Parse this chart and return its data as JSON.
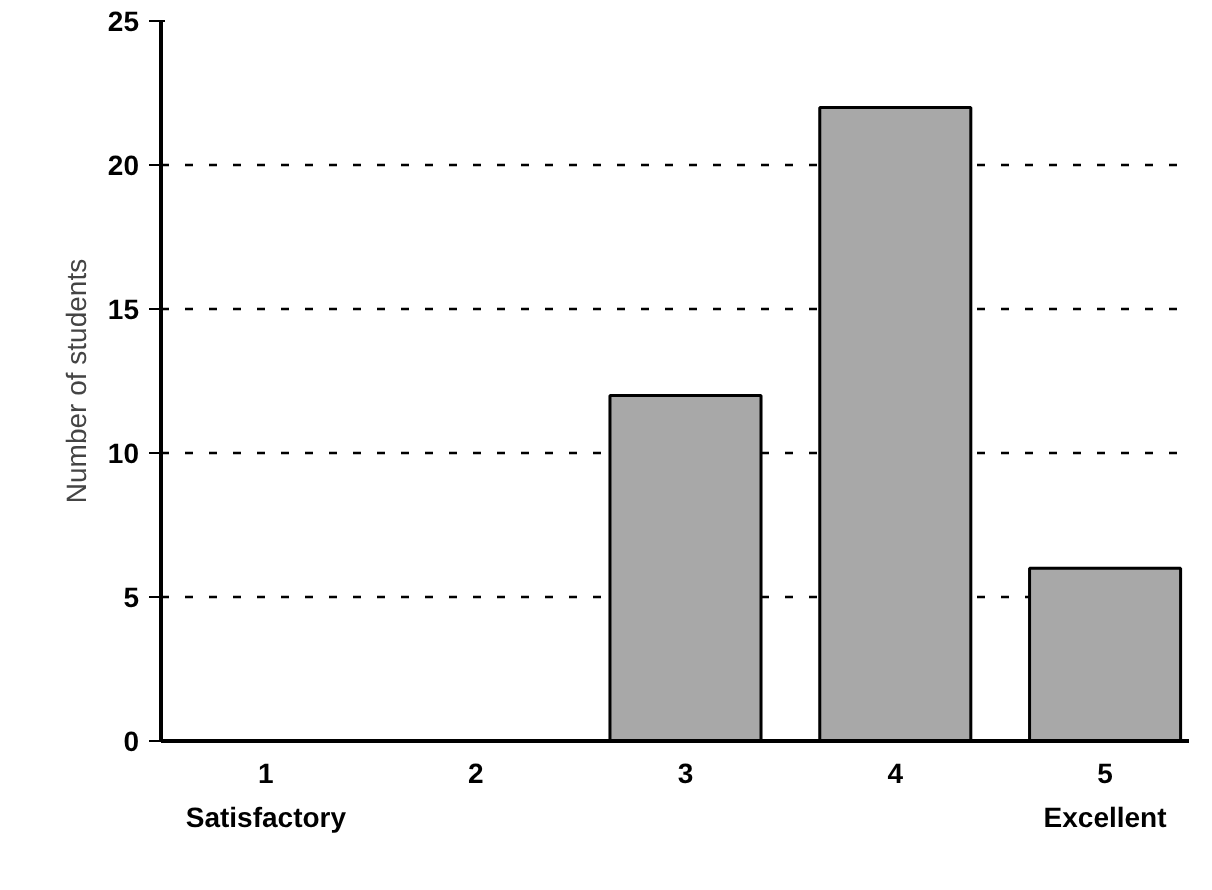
{
  "chart_data": {
    "type": "bar",
    "ylabel": "Number of students",
    "categories": [
      "1",
      "2",
      "3",
      "4",
      "5"
    ],
    "values": [
      0,
      0,
      12,
      22,
      6
    ],
    "color": "#a8a8a8",
    "ylim": [
      0,
      25
    ],
    "yticks": [
      0,
      5,
      10,
      15,
      20,
      25
    ],
    "grid": "y",
    "line_style": "dashed",
    "annotations": [
      "Satisfactory",
      "Excellent"
    ]
  }
}
